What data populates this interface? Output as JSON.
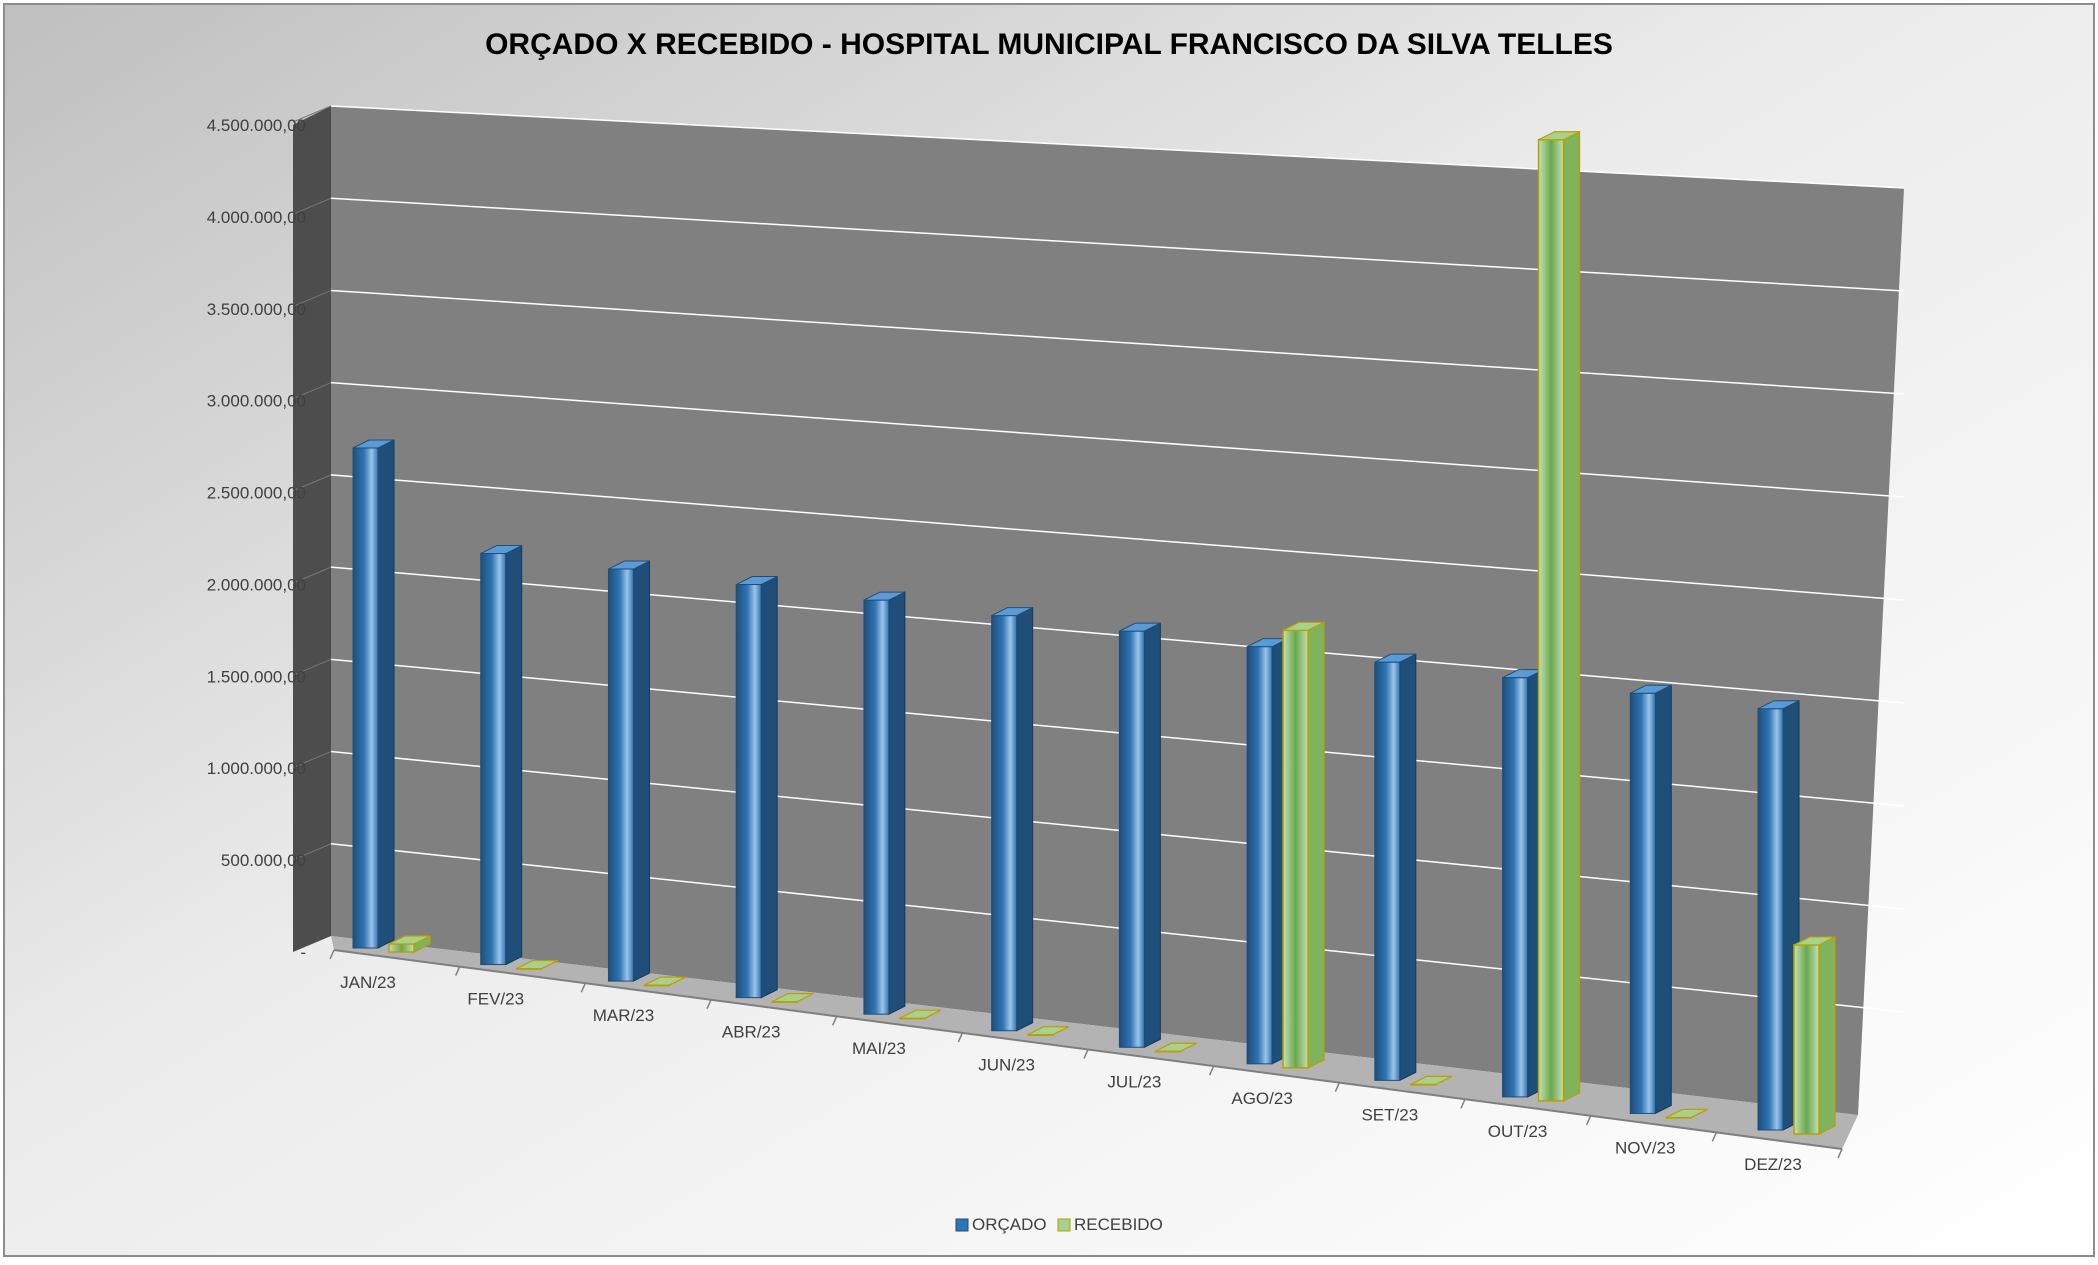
{
  "chart_data": {
    "type": "bar",
    "title": "ORÇADO X RECEBIDO - HOSPITAL MUNICIPAL FRANCISCO DA SILVA TELLES",
    "xlabel": "",
    "ylabel": "",
    "ylim": [
      0,
      4500000
    ],
    "yticks": [
      {
        "value": 0,
        "label": "-"
      },
      {
        "value": 500000,
        "label": "500.000,00"
      },
      {
        "value": 1000000,
        "label": "1.000.000,00"
      },
      {
        "value": 1500000,
        "label": "1.500.000,00"
      },
      {
        "value": 2000000,
        "label": "2.000.000,00"
      },
      {
        "value": 2500000,
        "label": "2.500.000,00"
      },
      {
        "value": 3000000,
        "label": "3.000.000,00"
      },
      {
        "value": 3500000,
        "label": "3.500.000,00"
      },
      {
        "value": 4000000,
        "label": "4.000.000,00"
      },
      {
        "value": 4500000,
        "label": "4.500.000,00"
      }
    ],
    "categories": [
      "JAN/23",
      "FEV/23",
      "MAR/23",
      "ABR/23",
      "MAI/23",
      "JUN/23",
      "JUL/23",
      "AGO/23",
      "SET/23",
      "OUT/23",
      "NOV/23",
      "DEZ/23"
    ],
    "series": [
      {
        "name": "ORÇADO",
        "color": "#2E75B6",
        "values": [
          2500000,
          2050000,
          2050000,
          2050000,
          2050000,
          2050000,
          2050000,
          2050000,
          2050000,
          2050000,
          2050000,
          2050000
        ]
      },
      {
        "name": "RECEBIDO",
        "color": "#A9D18E",
        "values": [
          40000,
          0,
          0,
          0,
          0,
          0,
          0,
          2150000,
          0,
          4700000,
          0,
          920000
        ]
      }
    ],
    "grid": true,
    "legend": "bottom-center"
  }
}
